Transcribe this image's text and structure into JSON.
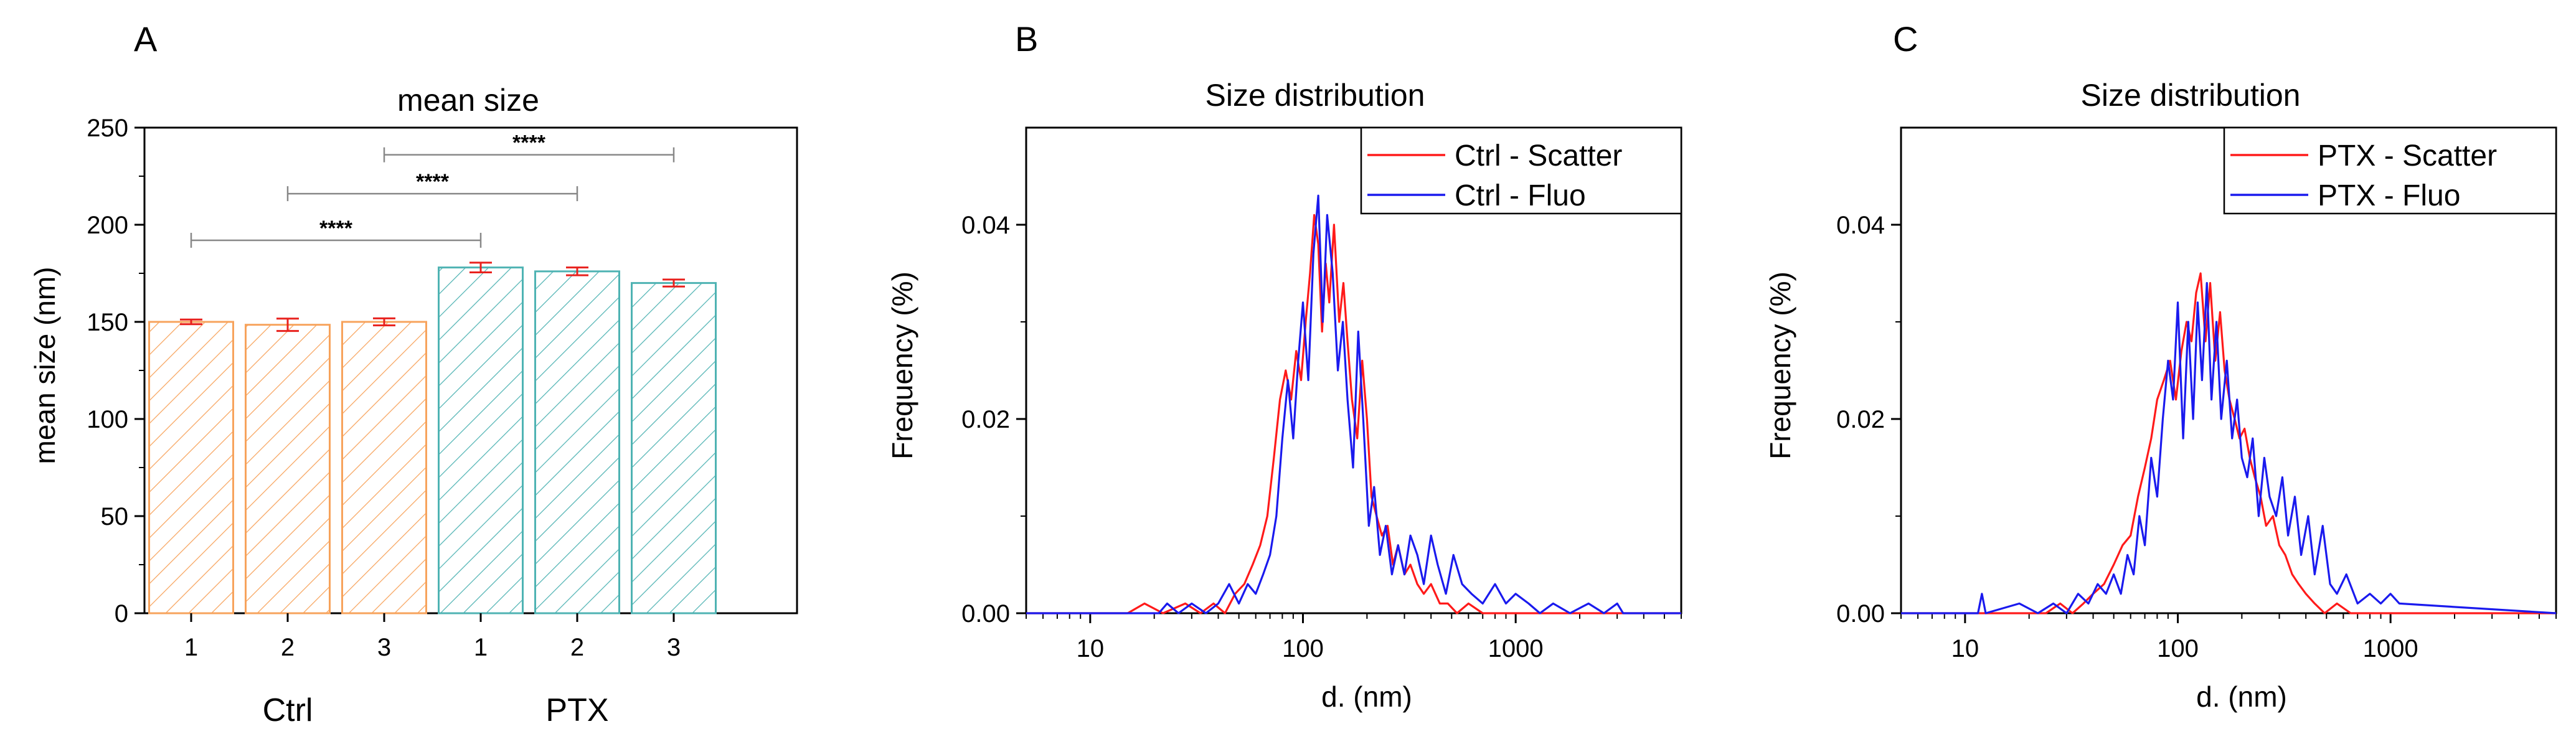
{
  "chart_data": [
    {
      "panel": "A",
      "type": "bar",
      "title": "mean size",
      "xlabel": "",
      "ylabel": "mean size (nm)",
      "ylim": [
        0,
        250
      ],
      "yticks": [
        "0",
        "50",
        "100",
        "150",
        "200",
        "250"
      ],
      "groups": [
        {
          "name": "Ctrl",
          "color": "#f7a35c",
          "categories": [
            "1",
            "2",
            "3"
          ],
          "values": [
            150,
            148.5,
            150
          ],
          "errors": [
            1.2,
            3.2,
            1.8
          ]
        },
        {
          "name": "PTX",
          "color": "#4fb3b3",
          "categories": [
            "1",
            "2",
            "3"
          ],
          "values": [
            178,
            176,
            170
          ],
          "errors": [
            2.5,
            2.0,
            1.8
          ]
        }
      ],
      "error_color": "#e8211d",
      "significance": [
        {
          "from": 0,
          "to": 3,
          "label": "****"
        },
        {
          "from": 1,
          "to": 4,
          "label": "****"
        },
        {
          "from": 2,
          "to": 5,
          "label": "****"
        }
      ]
    },
    {
      "panel": "B",
      "type": "line",
      "title": "Size distribution",
      "xlabel": "d. (nm)",
      "ylabel": "Frequency (%)",
      "xscale": "log",
      "xlim": [
        5,
        6000
      ],
      "ylim": [
        0,
        0.05
      ],
      "xticks": [
        "10",
        "100",
        "1000"
      ],
      "yticks": [
        "0.00",
        "0.02",
        "0.04"
      ],
      "legend": "top-right",
      "series": [
        {
          "name": "Ctrl - Scatter",
          "color": "#ff1a1a",
          "x": [
            5,
            15,
            18,
            22,
            28,
            33,
            38,
            43,
            48,
            53,
            58,
            63,
            68,
            73,
            78,
            83,
            88,
            93,
            98,
            103,
            108,
            113,
            118,
            123,
            128,
            133,
            140,
            148,
            155,
            162,
            170,
            180,
            190,
            200,
            210,
            222,
            235,
            250,
            265,
            280,
            300,
            320,
            345,
            370,
            400,
            440,
            480,
            530,
            600,
            700,
            850,
            1000,
            6000
          ],
          "y": [
            0,
            0,
            0.001,
            0,
            0.001,
            0,
            0.001,
            0,
            0.002,
            0.003,
            0.005,
            0.007,
            0.01,
            0.016,
            0.022,
            0.025,
            0.022,
            0.027,
            0.024,
            0.03,
            0.035,
            0.041,
            0.038,
            0.029,
            0.036,
            0.032,
            0.04,
            0.03,
            0.034,
            0.028,
            0.022,
            0.018,
            0.026,
            0.02,
            0.012,
            0.01,
            0.008,
            0.009,
            0.005,
            0.007,
            0.004,
            0.005,
            0.003,
            0.002,
            0.003,
            0.001,
            0.001,
            0,
            0.001,
            0,
            0,
            0,
            0
          ]
        },
        {
          "name": "Ctrl - Fluo",
          "color": "#1a1aee",
          "x": [
            5,
            21,
            23,
            26,
            30,
            35,
            40,
            45,
            50,
            55,
            60,
            65,
            70,
            75,
            80,
            85,
            90,
            95,
            100,
            106,
            112,
            118,
            124,
            130,
            138,
            146,
            154,
            162,
            172,
            182,
            192,
            204,
            216,
            230,
            245,
            262,
            280,
            300,
            320,
            345,
            370,
            400,
            430,
            470,
            510,
            560,
            620,
            700,
            800,
            900,
            1000,
            1150,
            1300,
            1500,
            1800,
            2200,
            2600,
            3000,
            3200,
            6000
          ],
          "y": [
            0,
            0,
            0.001,
            0,
            0.001,
            0,
            0.001,
            0.003,
            0.001,
            0.003,
            0.002,
            0.004,
            0.006,
            0.01,
            0.018,
            0.024,
            0.018,
            0.026,
            0.032,
            0.024,
            0.037,
            0.043,
            0.03,
            0.041,
            0.035,
            0.025,
            0.03,
            0.022,
            0.015,
            0.029,
            0.02,
            0.009,
            0.013,
            0.006,
            0.009,
            0.004,
            0.007,
            0.004,
            0.008,
            0.006,
            0.003,
            0.008,
            0.005,
            0.002,
            0.006,
            0.003,
            0.002,
            0.001,
            0.003,
            0.001,
            0.002,
            0.001,
            0,
            0.001,
            0,
            0.001,
            0,
            0.001,
            0,
            0
          ]
        }
      ]
    },
    {
      "panel": "C",
      "type": "line",
      "title": "Size distribution",
      "xlabel": "d. (nm)",
      "ylabel": "Frequency (%)",
      "xscale": "log",
      "xlim": [
        5,
        6000
      ],
      "ylim": [
        0,
        0.05
      ],
      "xticks": [
        "10",
        "100",
        "1000"
      ],
      "yticks": [
        "0.00",
        "0.02",
        "0.04"
      ],
      "legend": "top-right",
      "series": [
        {
          "name": "PTX - Scatter",
          "color": "#ff1a1a",
          "x": [
            5,
            24,
            28,
            32,
            36,
            40,
            45,
            50,
            55,
            60,
            65,
            70,
            75,
            80,
            86,
            92,
            98,
            104,
            110,
            116,
            122,
            128,
            135,
            142,
            150,
            158,
            166,
            175,
            185,
            195,
            206,
            218,
            230,
            245,
            260,
            280,
            300,
            320,
            345,
            370,
            400,
            440,
            490,
            560,
            650,
            800,
            1000,
            6000
          ],
          "y": [
            0,
            0,
            0.001,
            0,
            0.001,
            0.002,
            0.003,
            0.005,
            0.007,
            0.008,
            0.012,
            0.015,
            0.018,
            0.022,
            0.024,
            0.026,
            0.022,
            0.027,
            0.03,
            0.028,
            0.033,
            0.035,
            0.028,
            0.034,
            0.026,
            0.031,
            0.025,
            0.022,
            0.02,
            0.018,
            0.019,
            0.016,
            0.014,
            0.012,
            0.009,
            0.01,
            0.007,
            0.006,
            0.004,
            0.003,
            0.002,
            0.001,
            0,
            0.001,
            0,
            0,
            0,
            0
          ]
        },
        {
          "name": "PTX - Fluo",
          "color": "#1a1aee",
          "x": [
            5,
            11.5,
            12,
            12.5,
            18,
            22,
            26,
            30,
            34,
            38,
            42,
            46,
            50,
            54,
            58,
            62,
            66,
            70,
            75,
            80,
            85,
            90,
            95,
            100,
            106,
            112,
            118,
            124,
            130,
            137,
            144,
            152,
            160,
            170,
            180,
            190,
            200,
            212,
            225,
            240,
            255,
            270,
            290,
            310,
            330,
            355,
            380,
            410,
            440,
            480,
            520,
            560,
            620,
            700,
            800,
            900,
            1000,
            1100,
            6000
          ],
          "y": [
            0,
            0,
            0.002,
            0,
            0.001,
            0,
            0.001,
            0,
            0.002,
            0.001,
            0.003,
            0.002,
            0.004,
            0.002,
            0.006,
            0.004,
            0.01,
            0.007,
            0.016,
            0.012,
            0.02,
            0.026,
            0.022,
            0.032,
            0.018,
            0.03,
            0.02,
            0.032,
            0.024,
            0.034,
            0.022,
            0.03,
            0.02,
            0.026,
            0.018,
            0.022,
            0.016,
            0.014,
            0.018,
            0.01,
            0.016,
            0.012,
            0.01,
            0.014,
            0.008,
            0.012,
            0.006,
            0.01,
            0.004,
            0.009,
            0.003,
            0.002,
            0.004,
            0.001,
            0.002,
            0.001,
            0.002,
            0.001,
            0
          ]
        }
      ]
    }
  ]
}
